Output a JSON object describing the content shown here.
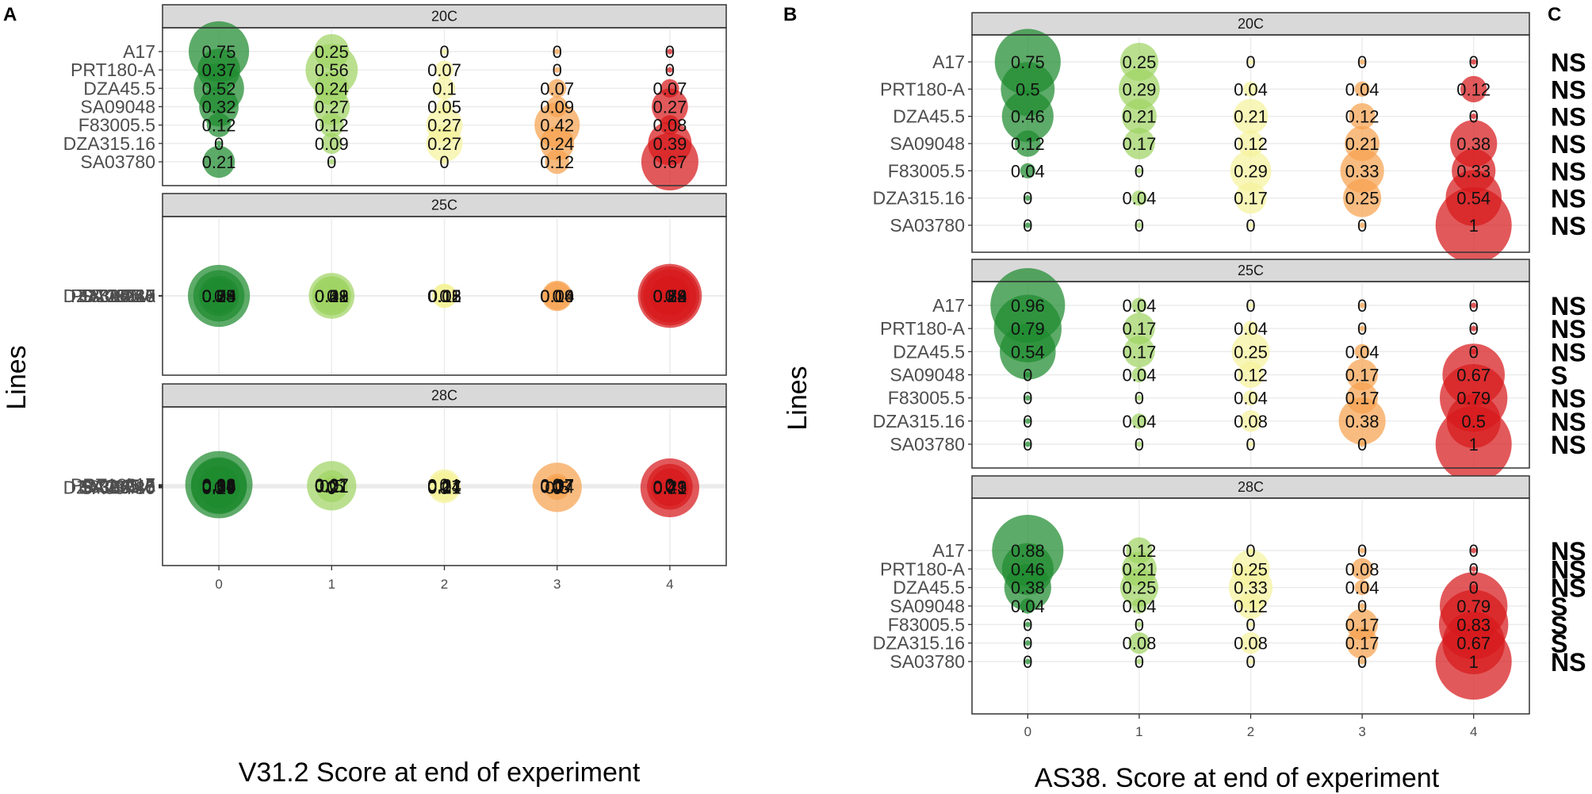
{
  "chart_data": [
    {
      "panel": "A",
      "type": "scatter",
      "subtype": "bubble",
      "xlabel": "V31.2 Score at end of experiment",
      "ylabel": "Lines",
      "x_categories": [
        "0",
        "1",
        "2",
        "3",
        "4"
      ],
      "lines": [
        "A17",
        "PRT180-A",
        "DZA45.5",
        "SA09048",
        "F83005.5",
        "DZA315.16",
        "SA03780"
      ],
      "facets": [
        {
          "title": "20C",
          "values": [
            [
              0.75,
              0.25,
              0,
              0,
              0
            ],
            [
              0.37,
              0.56,
              0.07,
              0,
              0
            ],
            [
              0.52,
              0.24,
              0.1,
              0.07,
              0.07
            ],
            [
              0.32,
              0.27,
              0.05,
              0.09,
              0.27
            ],
            [
              0.12,
              0.12,
              0.27,
              0.42,
              0.08
            ],
            [
              0,
              0.09,
              0.27,
              0.24,
              0.39
            ],
            [
              0.21,
              0,
              0,
              0.12,
              0.67
            ]
          ]
        },
        {
          "title": "25C",
          "values": [
            [
              0.79,
              0.21,
              0,
              0,
              0
            ],
            [
              0.54,
              0.32,
              0.11,
              0.04,
              0
            ],
            [
              0.25,
              0.43,
              0,
              0.04,
              0.29
            ],
            [
              0.33,
              0.29,
              0.05,
              0,
              0.33
            ],
            [
              0.04,
              0.08,
              0.12,
              0.19,
              0.58
            ],
            [
              0,
              0,
              0.12,
              0.16,
              0.72
            ],
            [
              0.08,
              0,
              0.08,
              0,
              0.84
            ]
          ]
        },
        {
          "title": "28C",
          "values": [
            [
              0.93,
              0.07,
              0,
              0,
              0
            ],
            [
              0.64,
              0.07,
              0.21,
              0.07,
              0
            ],
            [
              0.29,
              0.5,
              0.14,
              0.07,
              0
            ],
            [
              0.64,
              0.21,
              0.14,
              0,
              0
            ],
            [
              0.36,
              0,
              0.07,
              0.14,
              0.43
            ],
            [
              0,
              0,
              0.21,
              0.5,
              0.29
            ],
            [
              0.29,
              0,
              0,
              0,
              0.71
            ]
          ]
        }
      ]
    },
    {
      "panel": "B",
      "type": "scatter",
      "subtype": "bubble",
      "xlabel": "AS38. Score at end of experiment",
      "ylabel": "Lines",
      "x_categories": [
        "0",
        "1",
        "2",
        "3",
        "4"
      ],
      "lines": [
        "A17",
        "PRT180-A",
        "DZA45.5",
        "SA09048",
        "F83005.5",
        "DZA315.16",
        "SA03780"
      ],
      "facets": [
        {
          "title": "20C",
          "values": [
            [
              0.75,
              0.25,
              0,
              0,
              0
            ],
            [
              0.5,
              0.29,
              0.04,
              0.04,
              0.12
            ],
            [
              0.46,
              0.21,
              0.21,
              0.12,
              0
            ],
            [
              0.12,
              0.17,
              0.12,
              0.21,
              0.38
            ],
            [
              0.04,
              0,
              0.29,
              0.33,
              0.33
            ],
            [
              0,
              0.04,
              0.17,
              0.25,
              0.54
            ],
            [
              0,
              0,
              0,
              0,
              1
            ]
          ]
        },
        {
          "title": "25C",
          "values": [
            [
              0.96,
              0.04,
              0,
              0,
              0
            ],
            [
              0.79,
              0.17,
              0.04,
              0,
              0
            ],
            [
              0.54,
              0.17,
              0.25,
              0.04,
              0
            ],
            [
              0,
              0.04,
              0.12,
              0.17,
              0.67
            ],
            [
              0,
              0,
              0.04,
              0.17,
              0.79
            ],
            [
              0,
              0.04,
              0.08,
              0.38,
              0.5
            ],
            [
              0,
              0,
              0,
              0,
              1
            ]
          ]
        },
        {
          "title": "28C",
          "values": [
            [
              0.88,
              0.12,
              0,
              0,
              0
            ],
            [
              0.46,
              0.21,
              0.25,
              0.08,
              0
            ],
            [
              0.38,
              0.25,
              0.33,
              0.04,
              0
            ],
            [
              0.04,
              0.04,
              0.12,
              0,
              0.79
            ],
            [
              0,
              0,
              0,
              0.17,
              0.83
            ],
            [
              0,
              0.08,
              0.08,
              0.17,
              0.67
            ],
            [
              0,
              0,
              0,
              0,
              1
            ]
          ]
        }
      ]
    },
    {
      "panel": "C",
      "type": "table",
      "facets": [
        {
          "title": "20C",
          "labels": [
            "NS",
            "NS",
            "NS",
            "NS",
            "NS",
            "NS",
            "NS"
          ]
        },
        {
          "title": "25C",
          "labels": [
            "NS",
            "NS",
            "NS",
            "S",
            "NS",
            "NS",
            "NS"
          ]
        },
        {
          "title": "28C",
          "labels": [
            "NS",
            "NS",
            "NS",
            "S",
            "S",
            "S",
            "NS"
          ]
        }
      ]
    }
  ],
  "colors": {
    "score0": "#1e8b2f",
    "score1": "#9fd464",
    "score2": "#f5f29c",
    "score3": "#f7a24f",
    "score4": "#d7191c"
  }
}
